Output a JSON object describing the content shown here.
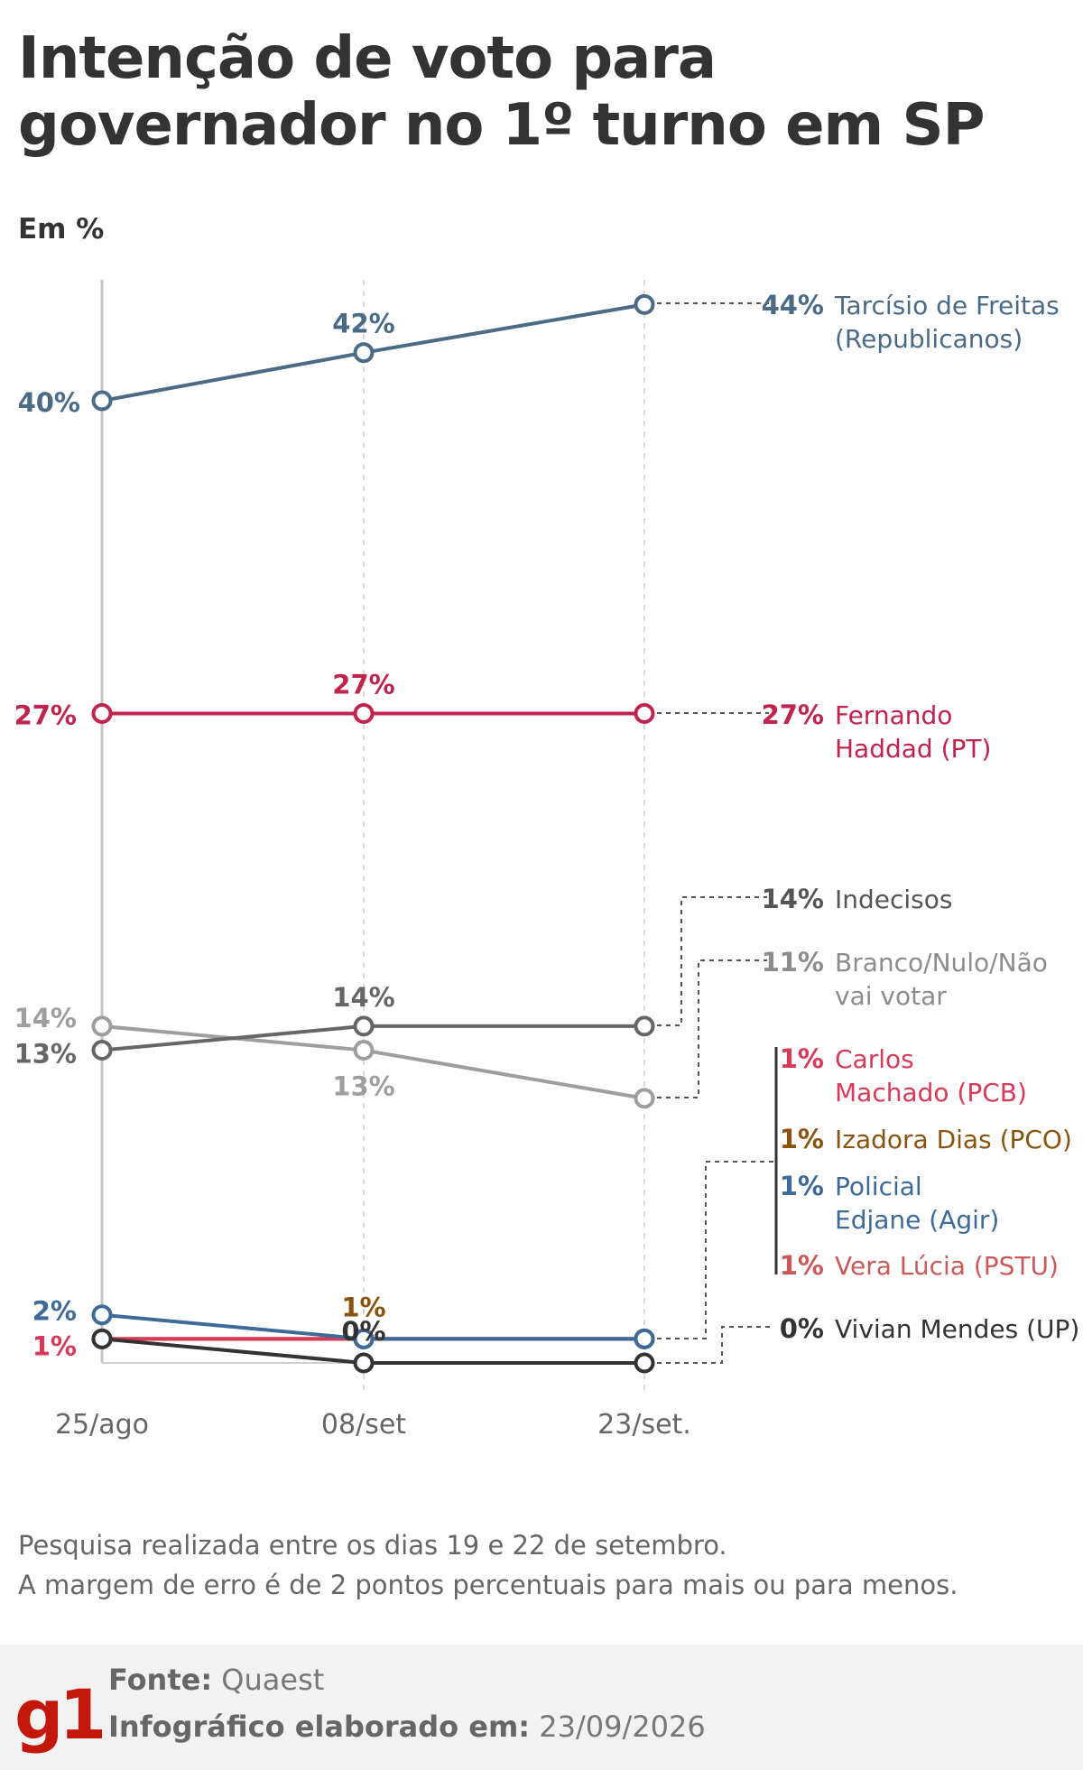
{
  "title": "Intenção de voto para governador no 1º turno em SP",
  "unit_label": "Em %",
  "chart_data": {
    "type": "line",
    "title": "Intenção de voto para governador no 1º turno em SP",
    "ylabel": "Em %",
    "ylim": [
      0,
      44
    ],
    "grid": "vertical dashed",
    "categories": [
      "25/ago",
      "08/set",
      "23/set."
    ],
    "series": [
      {
        "name": "Tarcísio de Freitas (Republicanos)",
        "values": [
          40,
          42,
          44
        ],
        "color": "#4a6a86",
        "point_labels": [
          "40%",
          "42%",
          "44%"
        ]
      },
      {
        "name": "Fernando Haddad (PT)",
        "values": [
          27,
          27,
          27
        ],
        "color": "#c0234b",
        "point_labels": [
          "27%",
          "27%",
          "27%"
        ]
      },
      {
        "name": "Indecisos",
        "values": [
          13,
          14,
          14
        ],
        "color": "#666666",
        "point_labels": [
          "13%",
          "14%",
          "14%"
        ]
      },
      {
        "name": "Branco/Nulo/Não vai votar",
        "values": [
          14,
          13,
          11
        ],
        "color": "#9e9e9e",
        "point_labels": [
          "14%",
          "13%",
          "11%"
        ]
      },
      {
        "name": "Policial Edjane (Agir)",
        "values": [
          2,
          1,
          1
        ],
        "color": "#3e6a99",
        "point_labels": [
          "2%",
          "",
          "1%"
        ]
      },
      {
        "name": "Carlos Machado (PCB)",
        "values": [
          1,
          1,
          1
        ],
        "color": "#d73a59",
        "point_labels": [
          "1%",
          "",
          "1%"
        ]
      },
      {
        "name": "Izadora Dias (PCO)",
        "values": [
          1,
          1,
          1
        ],
        "color": "#8a5410",
        "point_labels": [
          "",
          "1%",
          "1%"
        ]
      },
      {
        "name": "Vera Lúcia (PSTU)",
        "values": [
          1,
          1,
          1
        ],
        "color": "#c95a5a",
        "point_labels": [
          "",
          "",
          "1%"
        ]
      },
      {
        "name": "Vivian Mendes (UP)",
        "values": [
          1,
          0,
          0
        ],
        "color": "#333333",
        "point_labels": [
          "",
          "0%",
          "0%"
        ]
      }
    ],
    "end_labels": [
      {
        "pct": "44%",
        "lines": [
          "Tarcísio de Freitas",
          "(Republicanos)"
        ],
        "color": "#4a6a86"
      },
      {
        "pct": "27%",
        "lines": [
          "Fernando",
          "Haddad (PT)"
        ],
        "color": "#c0234b"
      },
      {
        "pct": "14%",
        "lines": [
          "Indecisos"
        ],
        "color": "#555555"
      },
      {
        "pct": "11%",
        "lines": [
          "Branco/Nulo/Não",
          "vai votar"
        ],
        "color": "#8c8c8c"
      },
      {
        "pct": "1%",
        "lines": [
          "Carlos",
          "Machado (PCB)"
        ],
        "color": "#d73a59"
      },
      {
        "pct": "1%",
        "lines": [
          "Izadora Dias (PCO)"
        ],
        "color": "#8a5410"
      },
      {
        "pct": "1%",
        "lines": [
          "Policial",
          "Edjane (Agir)"
        ],
        "color": "#3e6a99"
      },
      {
        "pct": "1%",
        "lines": [
          "Vera Lúcia (PSTU)"
        ],
        "color": "#c95a5a"
      },
      {
        "pct": "0%",
        "lines": [
          "Vivian Mendes (UP)"
        ],
        "color": "#333333"
      }
    ]
  },
  "notes": {
    "line1": "Pesquisa realizada entre os dias 19 e 22 de setembro.",
    "line2": "A margem de erro é de 2 pontos percentuais para mais ou para menos."
  },
  "footer": {
    "logo": "g1",
    "source_label": "Fonte:",
    "source_value": "Quaest",
    "made_label": "Infográfico elaborado em:",
    "made_value": "23/09/2026"
  }
}
